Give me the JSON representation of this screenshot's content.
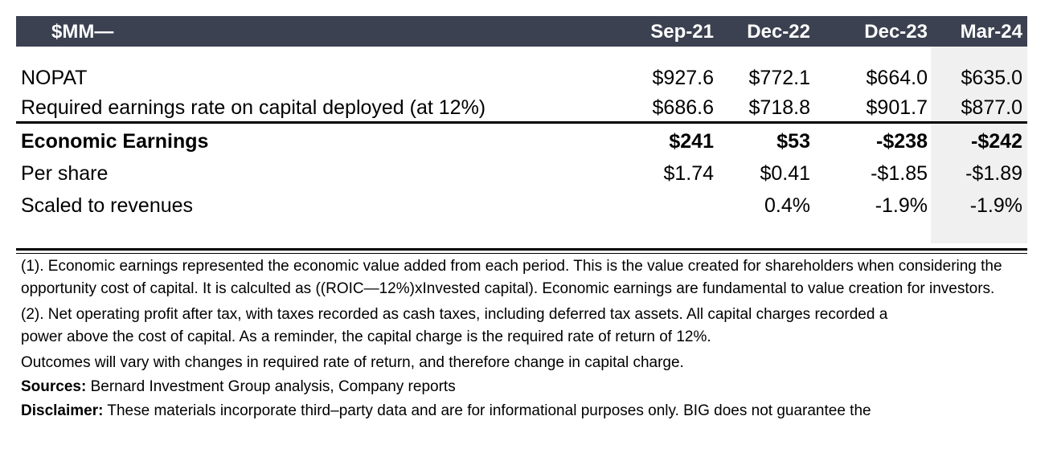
{
  "table": {
    "header_label": "$MM—",
    "columns": [
      "Sep-21",
      "Dec-22",
      "Dec-23",
      "Mar-24"
    ],
    "rows": [
      {
        "label": "NOPAT",
        "bold": false,
        "values": [
          "$927.6",
          "$772.1",
          "$664.0",
          "$635.0"
        ]
      },
      {
        "label": "Required earnings rate on capital deployed (at 12%)",
        "bold": false,
        "values": [
          "$686.6",
          "$718.8",
          "$901.7",
          "$877.0"
        ]
      },
      {
        "label": "Economic Earnings",
        "bold": true,
        "values": [
          "$241",
          "$53",
          "-$238",
          "-$242"
        ]
      },
      {
        "label": "Per share",
        "bold": false,
        "values": [
          "$1.74",
          "$0.41",
          "-$1.85",
          "-$1.89"
        ]
      },
      {
        "label": "Scaled to revenues",
        "bold": false,
        "values": [
          "",
          "0.4%",
          "-1.9%",
          "-1.9%"
        ]
      }
    ]
  },
  "notes": {
    "note1": "(1). Economic earnings represented the economic value added from each period. This is the value created for shareholders when considering the opportunity cost of capital. It is calculted as ((ROIC—12%)xInvested capital). Economic earnings are fundamental to value creation for investors.",
    "note2_line1": "(2). Net operating profit after tax, with taxes recorded as cash taxes, including deferred tax assets. All capital charges recorded a",
    "note2_line2": "power above the cost of capital. As a reminder, the capital charge is the required rate of return of 12%.",
    "outcomes": "Outcomes will vary with changes in required rate of return, and therefore change in capital charge.",
    "sources_label": "Sources:",
    "sources_text": " Bernard Investment Group analysis, Company reports",
    "disclaimer_label": "Disclaimer:",
    "disclaimer_text": " These materials incorporate third–party data and are for informational purposes only. BIG does not guarantee the"
  }
}
